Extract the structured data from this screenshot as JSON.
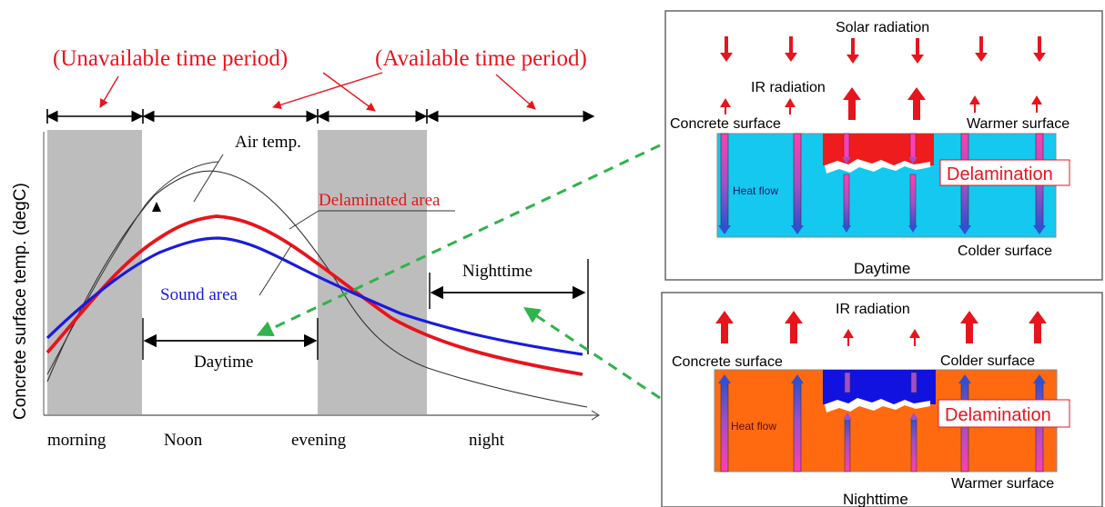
{
  "left_chart": {
    "header_unavailable": "(Unavailable time period)",
    "header_available": "(Available time period)",
    "y_axis_label": "Concrete surface temp. (degC)",
    "air_temp_label": "Air temp.",
    "delaminated_label": "Delaminated area",
    "sound_label": "Sound area",
    "daytime_label": "Daytime",
    "nighttime_label": "Nighttime",
    "x_labels": [
      "morning",
      "Noon",
      "evening",
      "night"
    ],
    "colors": {
      "red": "#e8141c",
      "blue": "#1a1ae0",
      "gray": "#bdbdbd",
      "arrow_green": "#2fb34a"
    }
  },
  "daytime_panel": {
    "solar_radiation": "Solar radiation",
    "ir_radiation": "IR radiation",
    "concrete_surface": "Concrete surface",
    "warmer_surface": "Warmer surface",
    "heat_flow": "Heat flow",
    "delamination": "Delamination",
    "colder_surface": "Colder surface",
    "caption": "Daytime",
    "colors": {
      "concrete": "#14c8f0",
      "delam_fill": "#ee1c1c"
    }
  },
  "nighttime_panel": {
    "ir_radiation": "IR radiation",
    "concrete_surface": "Concrete surface",
    "colder_surface": "Colder surface",
    "heat_flow": "Heat flow",
    "delamination": "Delamination",
    "warmer_surface": "Warmer surface",
    "caption": "Nighttime",
    "colors": {
      "concrete": "#ff6a10",
      "delam_fill": "#1212e0"
    }
  }
}
